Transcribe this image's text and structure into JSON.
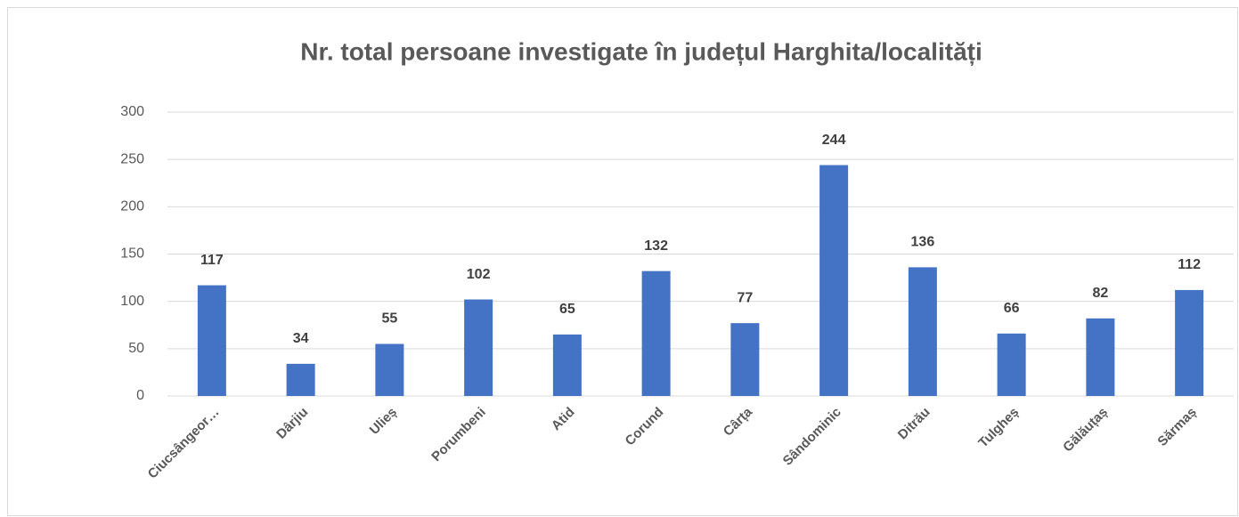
{
  "chart_data": {
    "type": "bar",
    "title": "Nr. total persoane investigate în județul Harghita/localități",
    "categories": [
      "Ciucsângeor…",
      "Dârjiu",
      "Ulieș",
      "Porumbeni",
      "Atid",
      "Corund",
      "Cârța",
      "Sândominic",
      "Ditrău",
      "Tulgheș",
      "Gălăuțaș",
      "Sărmaș"
    ],
    "values": [
      117,
      34,
      55,
      102,
      65,
      132,
      77,
      244,
      136,
      66,
      82,
      112
    ],
    "color": "#4472c4",
    "ylim": [
      0,
      300
    ],
    "yticks": [
      0,
      50,
      100,
      150,
      200,
      250,
      300
    ],
    "grid": true
  }
}
